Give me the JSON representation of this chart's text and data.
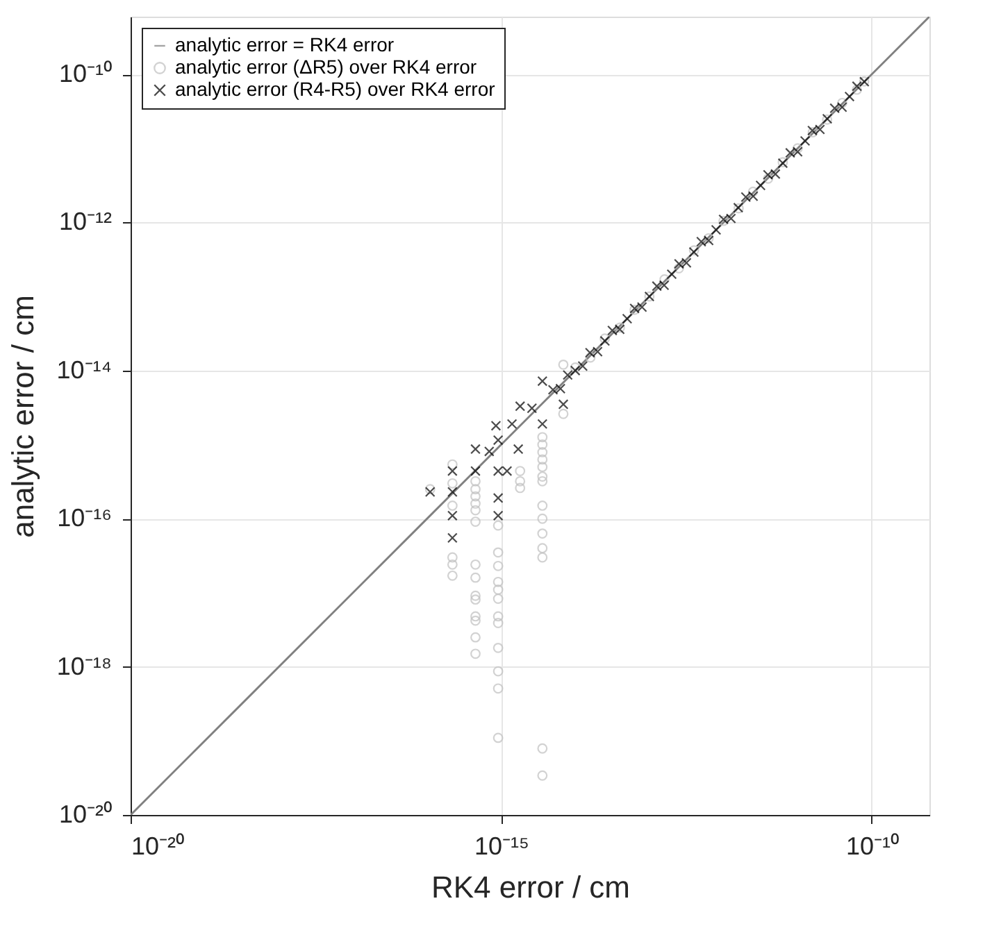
{
  "chart_data": {
    "type": "scatter",
    "xlabel": "RK4 error / cm",
    "ylabel": "analytic error / cm",
    "log": "xy",
    "grid": true,
    "legend": "top left",
    "xlim": [
      1e-20,
      6e-10
    ],
    "ylim": [
      1e-20,
      6e-10
    ],
    "xticks": [
      {
        "value": 1e-20,
        "label": "10⁻²⁰"
      },
      {
        "value": 1e-15,
        "label": "10⁻¹⁵"
      },
      {
        "value": 1e-10,
        "label": "10⁻¹⁰"
      }
    ],
    "yticks": [
      {
        "value": 1e-20,
        "label": "10⁻²⁰"
      },
      {
        "value": 1e-18,
        "label": "10⁻¹⁸"
      },
      {
        "value": 1e-16,
        "label": "10⁻¹⁶"
      },
      {
        "value": 1e-14,
        "label": "10⁻¹⁴"
      },
      {
        "value": 1e-12,
        "label": "10⁻¹²"
      },
      {
        "value": 1e-10,
        "label": "10⁻¹⁰"
      }
    ],
    "series": [
      {
        "name": "analytic error = RK4 error",
        "type": "line",
        "color": "#808080",
        "marker": "none",
        "line_style": "solid",
        "x": [
          1e-20,
          6e-10
        ],
        "values": [
          1e-20,
          6e-10
        ]
      },
      {
        "name": "analytic error (ΔR5) over RK4 error",
        "type": "scatter",
        "color": "#c0c0c0",
        "marker": "circle",
        "x": [
          1.1e-16,
          2.2e-16,
          2.2e-16,
          2.2e-16,
          2.2e-16,
          2.2e-16,
          2.2e-16,
          4.5e-16,
          4.5e-16,
          4.5e-16,
          4.5e-16,
          4.5e-16,
          4.5e-16,
          4.5e-16,
          4.5e-16,
          4.5e-16,
          4.5e-16,
          4.5e-16,
          4.5e-16,
          4.5e-16,
          4.5e-16,
          9.1e-16,
          9.1e-16,
          9.1e-16,
          9.1e-16,
          9.1e-16,
          9.1e-16,
          9.1e-16,
          9.1e-16,
          9.1e-16,
          9.1e-16,
          9.1e-16,
          9.1e-16,
          1.8e-15,
          1.8e-15,
          1.8e-15,
          3.6e-15,
          3.6e-15,
          3.6e-15,
          3.6e-15,
          3.6e-15,
          3.6e-15,
          3.6e-15,
          3.6e-15,
          3.6e-15,
          3.6e-15,
          3.6e-15,
          3.6e-15,
          3.6e-15,
          3.6e-15,
          6.9e-15,
          6.9e-15,
          1e-14,
          1.6e-14,
          2.5e-14,
          4e-14,
          6.3e-14,
          1e-13,
          1.6e-13,
          2.5e-13,
          4e-13,
          6.3e-13,
          1e-12,
          1.6e-12,
          2.5e-12,
          4e-12,
          6.3e-12,
          1e-11,
          1.6e-11,
          2.5e-11,
          4e-11,
          6.3e-11,
          7.9e-11
        ],
        "values": [
          2.5e-16,
          5.4e-16,
          3e-16,
          1.5e-16,
          3e-17,
          2.4e-17,
          1.7e-17,
          3.2e-16,
          2.5e-16,
          2e-16,
          1.6e-16,
          1.3e-16,
          9.1e-17,
          2.4e-17,
          1.6e-17,
          9.1e-18,
          8.1e-18,
          4.8e-18,
          4.2e-18,
          2.5e-18,
          1.5e-18,
          8.1e-17,
          3.5e-17,
          2.3e-17,
          1.4e-17,
          1.1e-17,
          8.3e-18,
          4.8e-18,
          3.9e-18,
          1.8e-18,
          8.7e-19,
          5.1e-19,
          1.1e-19,
          4.4e-16,
          3.2e-16,
          2.6e-16,
          1.26e-15,
          1e-15,
          7.9e-16,
          6.3e-16,
          5e-16,
          3.7e-16,
          3.2e-16,
          1.5e-16,
          1e-16,
          6.3e-17,
          4e-17,
          3e-17,
          7.9e-20,
          3.4e-20,
          1.2e-14,
          2.6e-15,
          1.1e-14,
          1.5e-14,
          2.7e-14,
          3.8e-14,
          6.6e-14,
          1e-13,
          1.7e-13,
          2.4e-13,
          4.2e-13,
          6.1e-13,
          1.05e-12,
          1.55e-12,
          2.6e-12,
          3.9e-12,
          6.5e-12,
          1e-11,
          1.65e-11,
          2.45e-11,
          4.1e-11,
          6.2e-11,
          8e-11
        ]
      },
      {
        "name": "analytic error (R4-R5) over RK4 error",
        "type": "scatter",
        "color": "#000000",
        "marker": "cross",
        "x": [
          1.1e-16,
          2.2e-16,
          2.2e-16,
          2.2e-16,
          2.2e-16,
          4.5e-16,
          4.5e-16,
          6.9e-16,
          9.1e-16,
          9.1e-16,
          9.1e-16,
          9.1e-16,
          8.5e-16,
          1.2e-15,
          1.4e-15,
          1.7e-15,
          1.8e-15,
          2.6e-15,
          3.6e-15,
          3.6e-15,
          6.9e-15,
          5e-15,
          6.3e-15,
          7.9e-15,
          1e-14,
          1.26e-14,
          1.58e-14,
          2e-14,
          2.51e-14,
          3.16e-14,
          3.98e-14,
          5.01e-14,
          6.31e-14,
          7.94e-14,
          1e-13,
          1.26e-13,
          1.58e-13,
          2e-13,
          2.51e-13,
          3.16e-13,
          3.98e-13,
          5.01e-13,
          6.31e-13,
          7.94e-13,
          1e-12,
          1.26e-12,
          1.58e-12,
          2e-12,
          2.51e-12,
          3.16e-12,
          3.98e-12,
          5.01e-12,
          6.31e-12,
          7.94e-12,
          1e-11,
          1.26e-11,
          1.58e-11,
          2e-11,
          2.51e-11,
          3.16e-11,
          3.98e-11,
          5.01e-11,
          6.31e-11,
          7.94e-11
        ],
        "values": [
          2.3e-16,
          4.4e-16,
          2.3e-16,
          1.1e-16,
          5.5e-17,
          8.7e-16,
          4.4e-16,
          8.1e-16,
          1.9e-16,
          1.1e-16,
          4.4e-16,
          1.15e-15,
          1.8e-15,
          4.4e-16,
          1.9e-15,
          8.7e-16,
          3.3e-15,
          3.1e-15,
          7.2e-15,
          1.9e-15,
          3.5e-15,
          5.5e-15,
          5.7e-15,
          8.7e-15,
          1e-14,
          1.15e-14,
          1.74e-14,
          1.8e-14,
          2.51e-14,
          3.48e-14,
          3.6e-14,
          5.01e-14,
          6.9e-14,
          7.2e-14,
          1e-13,
          1.38e-13,
          1.42e-13,
          2e-13,
          2.76e-13,
          2.85e-13,
          3.98e-13,
          5.5e-13,
          5.7e-13,
          7.94e-13,
          1.1e-12,
          1.13e-12,
          1.58e-12,
          2.2e-12,
          2.26e-12,
          3.16e-12,
          4.4e-12,
          4.5e-12,
          6.31e-12,
          8.7e-12,
          9e-12,
          1.26e-11,
          1.74e-11,
          1.8e-11,
          2.51e-11,
          3.48e-11,
          3.6e-11,
          5.01e-11,
          6.9e-11,
          7.94e-11
        ]
      }
    ]
  }
}
